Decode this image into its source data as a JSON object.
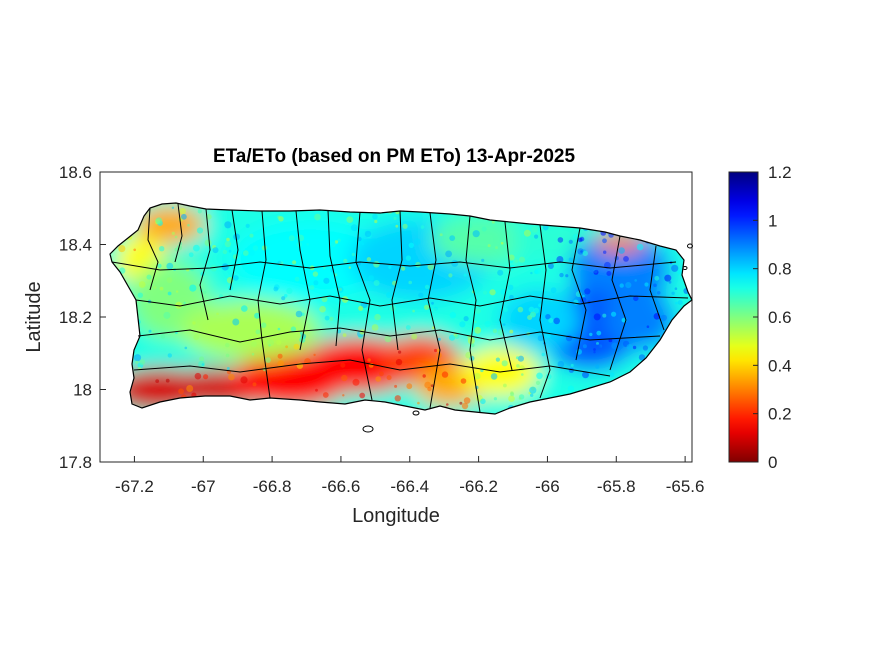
{
  "chart_data": {
    "type": "heatmap",
    "title": "ETa/ETo (based on PM ETo) 13-Apr-2025",
    "xlabel": "Longitude",
    "ylabel": "Latitude",
    "xlim": [
      -67.3,
      -65.58
    ],
    "ylim": [
      17.8,
      18.6
    ],
    "x_ticks": [
      -67.2,
      -67,
      -66.8,
      -66.6,
      -66.4,
      -66.2,
      -66,
      -65.8,
      -65.6
    ],
    "x_tick_labels": [
      "-67.2",
      "-67",
      "-66.8",
      "-66.6",
      "-66.4",
      "-66.2",
      "-66",
      "-65.8",
      "-65.6"
    ],
    "y_ticks": [
      17.8,
      18,
      18.2,
      18.4,
      18.6
    ],
    "y_tick_labels": [
      "17.8",
      "18",
      "18.2",
      "18.4",
      "18.6"
    ],
    "colorbar": {
      "colormap": "jet",
      "range": [
        0,
        1.2
      ],
      "ticks": [
        0,
        0.2,
        0.4,
        0.6,
        0.8,
        1,
        1.2
      ],
      "tick_labels": [
        "0",
        "0.2",
        "0.4",
        "0.6",
        "0.8",
        "1",
        "1.2"
      ]
    },
    "grid": false,
    "regional_pattern": {
      "southwest_coast": 0.1,
      "south_central_coast": 0.15,
      "northwest_corner": 0.35,
      "west_interior": 0.6,
      "central_interior": 0.75,
      "north_coast": 0.65,
      "east": 0.9,
      "southeast": 0.95
    },
    "colors": {
      "outline": "#000000",
      "axes": "#262626"
    }
  }
}
